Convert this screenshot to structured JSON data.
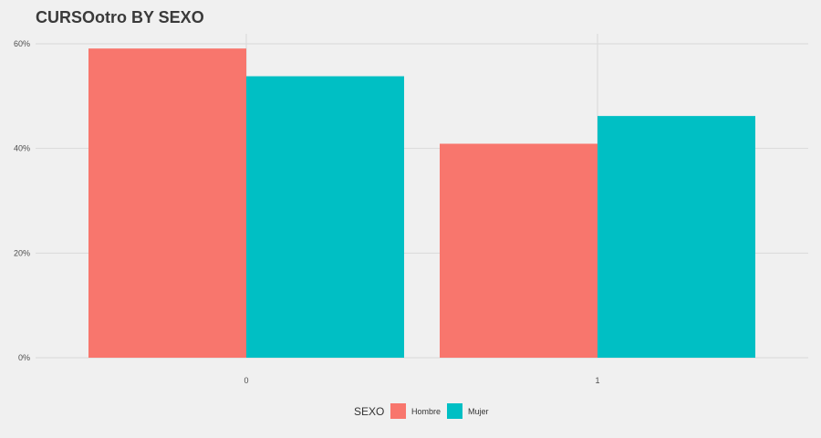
{
  "chart_data": {
    "type": "bar",
    "title": "CURSOotro BY SEXO",
    "xlabel": "",
    "ylabel": "",
    "categories": [
      "0",
      "1"
    ],
    "series": [
      {
        "name": "Hombre",
        "values": [
          59.1,
          40.9
        ],
        "color": "#f8766d"
      },
      {
        "name": "Mujer",
        "values": [
          53.8,
          46.2
        ],
        "color": "#00bfc4"
      }
    ],
    "ylim": [
      0,
      60
    ],
    "y_ticks": [
      0,
      20,
      40,
      60
    ],
    "y_tick_labels": [
      "0%",
      "20%",
      "40%",
      "60%"
    ],
    "grid": true,
    "legend": {
      "title": "SEXO",
      "position": "bottom"
    },
    "colors": {
      "background": "#f0f0f0",
      "grid": "#d9d9d9"
    }
  }
}
